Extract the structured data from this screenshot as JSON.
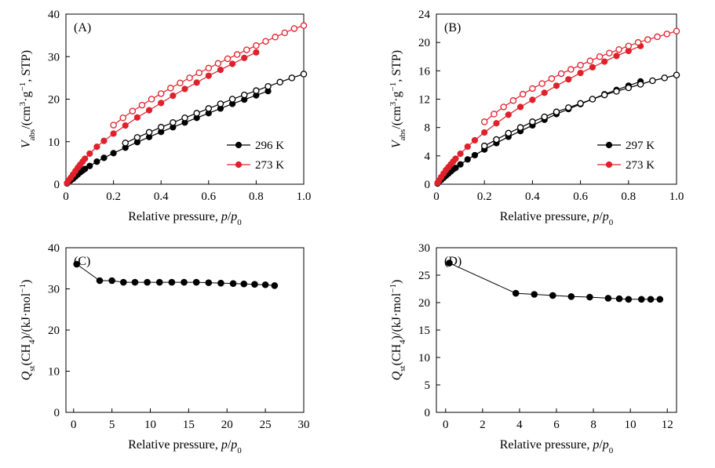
{
  "figure": {
    "panels": [
      "(A)",
      "(B)",
      "(C)",
      "(D)"
    ]
  },
  "chart_data": [
    {
      "panel": "(A)",
      "type": "scatter",
      "title": "",
      "xlabel": "Relative pressure, p/p0",
      "xlabel_parts": [
        "Relative pressure, ",
        "p",
        "/",
        "p",
        "0"
      ],
      "ylabel_parts": [
        "V",
        "abs",
        "/(cm",
        "3",
        "·g",
        "−1",
        ", STP)"
      ],
      "xlim": [
        0,
        1.0
      ],
      "ylim": [
        0,
        40
      ],
      "xticks": [
        0,
        0.2,
        0.4,
        0.6,
        0.8,
        1.0
      ],
      "xtick_labels": [
        "0",
        "0.2",
        "0.4",
        "0.6",
        "0.8",
        "1.0"
      ],
      "yticks": [
        0,
        10,
        20,
        30,
        40
      ],
      "ytick_labels": [
        "0",
        "10",
        "20",
        "30",
        "40"
      ],
      "legend_position": "lower-right",
      "series": [
        {
          "name": "296 K",
          "color": "#000000",
          "adsorption": {
            "x": [
              0.005,
              0.01,
              0.02,
              0.03,
              0.04,
              0.05,
              0.06,
              0.07,
              0.08,
              0.1,
              0.13,
              0.16,
              0.2,
              0.25,
              0.3,
              0.35,
              0.4,
              0.45,
              0.5,
              0.55,
              0.6,
              0.65,
              0.7,
              0.75,
              0.8,
              0.85
            ],
            "y": [
              0.2,
              0.5,
              0.9,
              1.3,
              1.8,
              2.3,
              2.8,
              3.2,
              3.6,
              4.3,
              5.3,
              6.2,
              7.3,
              8.6,
              9.9,
              11.1,
              12.3,
              13.4,
              14.5,
              15.6,
              16.7,
              17.8,
              18.9,
              19.9,
              20.9,
              21.9
            ]
          },
          "desorption": {
            "x": [
              1.0,
              0.95,
              0.9,
              0.85,
              0.8,
              0.75,
              0.7,
              0.65,
              0.6,
              0.55,
              0.5,
              0.45,
              0.4,
              0.35,
              0.3,
              0.25
            ],
            "y": [
              25.9,
              25.0,
              24.0,
              23.0,
              22.0,
              21.0,
              20.0,
              18.9,
              17.8,
              16.7,
              15.6,
              14.5,
              13.4,
              12.2,
              11.0,
              9.7
            ]
          }
        },
        {
          "name": "273 K",
          "color": "#e0202a",
          "adsorption": {
            "x": [
              0.005,
              0.01,
              0.02,
              0.03,
              0.04,
              0.05,
              0.06,
              0.07,
              0.08,
              0.1,
              0.13,
              0.16,
              0.2,
              0.25,
              0.3,
              0.35,
              0.4,
              0.45,
              0.5,
              0.55,
              0.6,
              0.65,
              0.7,
              0.75,
              0.8
            ],
            "y": [
              0.3,
              0.8,
              1.5,
              2.3,
              3.1,
              3.9,
              4.6,
              5.3,
              6.0,
              7.2,
              8.8,
              10.2,
              11.9,
              13.8,
              15.7,
              17.4,
              19.1,
              20.8,
              22.4,
              23.9,
              25.5,
              26.9,
              28.3,
              29.7,
              31.0
            ]
          },
          "desorption": {
            "x": [
              1.0,
              0.96,
              0.92,
              0.88,
              0.84,
              0.8,
              0.76,
              0.72,
              0.68,
              0.64,
              0.6,
              0.56,
              0.52,
              0.48,
              0.44,
              0.4,
              0.36,
              0.32,
              0.28,
              0.24,
              0.2
            ],
            "y": [
              37.3,
              36.6,
              35.6,
              34.6,
              33.6,
              32.6,
              31.6,
              30.5,
              29.5,
              28.4,
              27.3,
              26.2,
              25.0,
              23.8,
              22.6,
              21.3,
              20.0,
              18.6,
              17.2,
              15.6,
              13.9
            ]
          }
        }
      ]
    },
    {
      "panel": "(B)",
      "type": "scatter",
      "title": "",
      "xlabel": "Relative pressure, p/p0",
      "xlabel_parts": [
        "Relative pressure, ",
        "p",
        "/",
        "p",
        "0"
      ],
      "ylabel_parts": [
        "V",
        "abs",
        "/(cm",
        "3",
        "·g",
        "−1",
        ", STP)"
      ],
      "xlim": [
        0,
        1.0
      ],
      "ylim": [
        0,
        24
      ],
      "xticks": [
        0,
        0.2,
        0.4,
        0.6,
        0.8,
        1.0
      ],
      "xtick_labels": [
        "0",
        "0.2",
        "0.4",
        "0.6",
        "0.8",
        "1.0"
      ],
      "yticks": [
        0,
        4,
        8,
        12,
        16,
        20,
        24
      ],
      "ytick_labels": [
        "0",
        "4",
        "8",
        "12",
        "16",
        "20",
        "24"
      ],
      "legend_position": "lower-right",
      "series": [
        {
          "name": "297 K",
          "color": "#000000",
          "adsorption": {
            "x": [
              0.005,
              0.01,
              0.02,
              0.03,
              0.04,
              0.05,
              0.06,
              0.07,
              0.08,
              0.1,
              0.13,
              0.16,
              0.2,
              0.25,
              0.3,
              0.35,
              0.4,
              0.45,
              0.5,
              0.55,
              0.6,
              0.65,
              0.7,
              0.75,
              0.8,
              0.85
            ],
            "y": [
              0.1,
              0.3,
              0.6,
              0.9,
              1.2,
              1.5,
              1.8,
              2.1,
              2.3,
              2.8,
              3.5,
              4.1,
              4.9,
              5.8,
              6.7,
              7.5,
              8.3,
              9.1,
              9.9,
              10.6,
              11.3,
              12.0,
              12.7,
              13.3,
              13.9,
              14.5
            ]
          },
          "desorption": {
            "x": [
              1.0,
              0.95,
              0.9,
              0.85,
              0.8,
              0.75,
              0.7,
              0.65,
              0.6,
              0.55,
              0.5,
              0.45,
              0.4,
              0.35,
              0.3,
              0.25,
              0.2
            ],
            "y": [
              15.4,
              15.0,
              14.6,
              14.1,
              13.6,
              13.1,
              12.6,
              12.0,
              11.4,
              10.8,
              10.2,
              9.5,
              8.8,
              8.0,
              7.2,
              6.3,
              5.4
            ]
          }
        },
        {
          "name": "273 K",
          "color": "#e0202a",
          "adsorption": {
            "x": [
              0.005,
              0.01,
              0.02,
              0.03,
              0.04,
              0.05,
              0.06,
              0.07,
              0.08,
              0.1,
              0.13,
              0.16,
              0.2,
              0.25,
              0.3,
              0.35,
              0.4,
              0.45,
              0.5,
              0.55,
              0.6,
              0.65,
              0.7,
              0.75,
              0.8,
              0.85
            ],
            "y": [
              0.2,
              0.5,
              1.0,
              1.5,
              2.0,
              2.4,
              2.8,
              3.2,
              3.6,
              4.3,
              5.3,
              6.2,
              7.3,
              8.6,
              9.8,
              10.9,
              11.9,
              12.9,
              13.9,
              14.8,
              15.7,
              16.5,
              17.3,
              18.1,
              18.8,
              19.5
            ]
          },
          "desorption": {
            "x": [
              1.0,
              0.96,
              0.92,
              0.88,
              0.84,
              0.8,
              0.76,
              0.72,
              0.68,
              0.64,
              0.6,
              0.56,
              0.52,
              0.48,
              0.44,
              0.4,
              0.36,
              0.32,
              0.28,
              0.24,
              0.2
            ],
            "y": [
              21.6,
              21.2,
              20.8,
              20.4,
              20.0,
              19.5,
              19.0,
              18.5,
              18.0,
              17.4,
              16.8,
              16.2,
              15.6,
              14.9,
              14.2,
              13.5,
              12.7,
              11.8,
              10.9,
              9.9,
              8.8
            ]
          }
        }
      ]
    },
    {
      "panel": "(C)",
      "type": "line",
      "title": "",
      "xlabel": "Relative pressure, p/p0",
      "xlabel_parts": [
        "Relative pressure, ",
        "p",
        "/",
        "p",
        "0"
      ],
      "ylabel_parts": [
        "Q",
        "st",
        "(CH",
        "4",
        ")/(kJ·mol",
        "−1",
        ")"
      ],
      "xlim": [
        -1,
        30
      ],
      "ylim": [
        0,
        40
      ],
      "xticks": [
        0,
        5,
        10,
        15,
        20,
        25,
        30
      ],
      "xtick_labels": [
        "0",
        "5",
        "10",
        "15",
        "20",
        "25",
        "30"
      ],
      "yticks": [
        0,
        10,
        20,
        30,
        40
      ],
      "ytick_labels": [
        "0",
        "10",
        "20",
        "30",
        "40"
      ],
      "series": [
        {
          "name": "Qst",
          "color": "#000000",
          "x": [
            0.4,
            3.4,
            5.0,
            6.5,
            8.0,
            9.6,
            11.2,
            12.8,
            14.4,
            16.0,
            17.6,
            19.2,
            20.8,
            22.2,
            23.6,
            25.0,
            26.2
          ],
          "y": [
            36.0,
            32.0,
            32.0,
            31.6,
            31.6,
            31.6,
            31.6,
            31.6,
            31.6,
            31.6,
            31.5,
            31.4,
            31.3,
            31.2,
            31.1,
            31.0,
            30.8
          ]
        }
      ]
    },
    {
      "panel": "(D)",
      "type": "line",
      "title": "",
      "xlabel": "Relative pressure, p/p0",
      "xlabel_parts": [
        "Relative pressure, ",
        "p",
        "/",
        "p",
        "0"
      ],
      "ylabel_parts": [
        "Q",
        "st",
        "(CH",
        "4",
        ")/(kJ·mol",
        "−1",
        ")"
      ],
      "xlim": [
        -0.5,
        12.5
      ],
      "ylim": [
        0,
        30
      ],
      "xticks": [
        0,
        2,
        4,
        6,
        8,
        10,
        12
      ],
      "xtick_labels": [
        "0",
        "2",
        "4",
        "6",
        "8",
        "10",
        "12"
      ],
      "yticks": [
        0,
        5,
        10,
        15,
        20,
        25,
        30
      ],
      "ytick_labels": [
        "0",
        "5",
        "10",
        "15",
        "20",
        "25",
        "30"
      ],
      "series": [
        {
          "name": "Qst",
          "color": "#000000",
          "x": [
            0.2,
            3.8,
            4.8,
            5.8,
            6.8,
            7.8,
            8.8,
            9.4,
            9.9,
            10.6,
            11.1,
            11.6
          ],
          "y": [
            27.2,
            21.7,
            21.5,
            21.3,
            21.1,
            21.0,
            20.8,
            20.7,
            20.6,
            20.6,
            20.6,
            20.6
          ]
        }
      ]
    }
  ]
}
